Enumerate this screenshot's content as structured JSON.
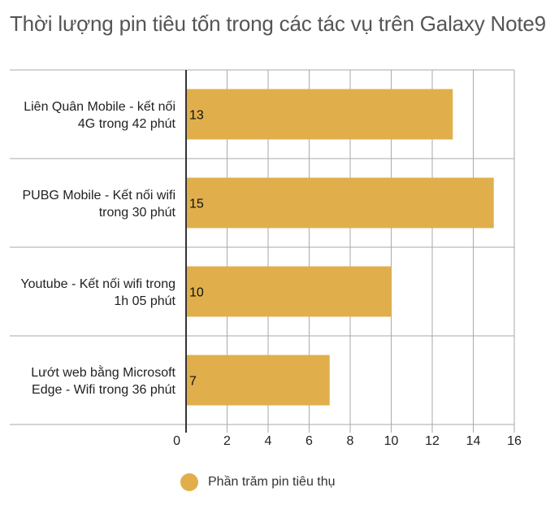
{
  "chart_data": {
    "type": "bar",
    "orientation": "horizontal",
    "title": "Thời lượng pin tiêu tốn trong các tác vụ trên Galaxy Note9",
    "categories": [
      [
        "Liên Quân Mobile - kết nối",
        "4G trong 42 phút"
      ],
      [
        "PUBG Mobile - Kết nối wifi",
        "trong 30 phút"
      ],
      [
        "Youtube - Kết nối wifi trong",
        "1h 05 phút"
      ],
      [
        "Lướt web bằng Microsoft",
        "Edge - Wifi trong 36 phút"
      ]
    ],
    "series": [
      {
        "name": "Phần trăm pin tiêu thụ",
        "values": [
          13,
          15,
          10,
          7
        ],
        "labels": [
          "13",
          "15",
          "10",
          "7"
        ],
        "color": "#e0af4c"
      }
    ],
    "xlim": [
      0,
      16
    ],
    "xticks": [
      "0",
      "2",
      "4",
      "6",
      "8",
      "10",
      "12",
      "14",
      "16"
    ],
    "grid": true,
    "legend_position": "bottom"
  }
}
